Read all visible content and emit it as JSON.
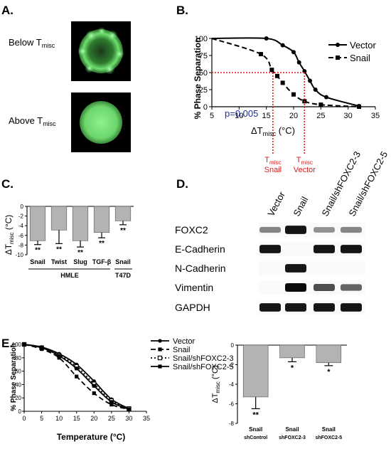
{
  "panels": {
    "A": "A.",
    "B": "B.",
    "C": "C.",
    "D": "D.",
    "E": "E."
  },
  "panel_a": {
    "below_label": "Below T",
    "above_label": "Above T",
    "subscript": "misc"
  },
  "panel_b": {
    "ylabel": "% Phase Separation",
    "xlabel_main": "ΔT",
    "xlabel_sub": "misc",
    "xlabel_unit": " (°C)",
    "pvalue": "p=0.005",
    "tm_label_snail_main": "T",
    "tm_label_snail_sub": "misc",
    "tm_label_snail_name": "Snail",
    "tm_label_vector_main": "T",
    "tm_label_vector_sub": "misc",
    "tm_label_vector_name": "Vector",
    "colors": {
      "red": "#d62020"
    }
  },
  "panel_c": {
    "ylabel_main": "ΔT",
    "ylabel_sub": "misc",
    "ylabel_unit": " (°C)",
    "group_hmle": "HMLE",
    "group_t47d": "T47D"
  },
  "panel_d": {
    "columns": [
      "Vector",
      "Snail",
      "Snail/shFOXC2-3",
      "Snail/shFOXC2-5"
    ],
    "rows": [
      {
        "name": "FOXC2",
        "bands": [
          0.45,
          0.95,
          0.4,
          0.45
        ]
      },
      {
        "name": "E-Cadherin",
        "bands": [
          0.95,
          0.0,
          0.95,
          0.95
        ]
      },
      {
        "name": "N-Cadherin",
        "bands": [
          0.0,
          0.95,
          0.0,
          0.0
        ]
      },
      {
        "name": "Vimentin",
        "bands": [
          0.0,
          1.0,
          0.7,
          0.6
        ]
      },
      {
        "name": "GAPDH",
        "bands": [
          0.95,
          0.95,
          0.95,
          0.95
        ]
      }
    ]
  },
  "panel_e": {
    "ylabel": "% Phase Separation",
    "xlabel": "Temperature (°C)",
    "bar_ylabel_main": "ΔT",
    "bar_ylabel_sub": "misc",
    "bar_ylabel_unit": " (°C)"
  },
  "chart_data": [
    {
      "id": "panel-b",
      "type": "line",
      "title": "",
      "xlabel": "ΔTmisc (°C)",
      "ylabel": "% Phase Separation",
      "xlim": [
        5,
        35
      ],
      "ylim": [
        0,
        100
      ],
      "xticks": [
        5,
        10,
        15,
        20,
        25,
        30,
        35
      ],
      "yticks": [
        0,
        25,
        50,
        75,
        100
      ],
      "legend": "top-right",
      "series": [
        {
          "name": "Vector",
          "style": "solid",
          "marker": "circle",
          "x": [
            5,
            15,
            18,
            20,
            21,
            22,
            23,
            24,
            26,
            32
          ],
          "y": [
            100,
            100,
            90,
            80,
            65,
            52,
            38,
            25,
            14,
            1
          ]
        },
        {
          "name": "Snail",
          "style": "dashed",
          "marker": "square",
          "x": [
            5,
            14,
            16,
            17,
            18,
            20,
            22,
            25,
            32
          ],
          "y": [
            100,
            77,
            54,
            45,
            35,
            18,
            8,
            3,
            0
          ]
        }
      ],
      "tmisc": {
        "Snail": 16.2,
        "Vector": 22.0
      },
      "annotation": "p=0.005"
    },
    {
      "id": "panel-c",
      "type": "bar",
      "title": "",
      "ylabel": "ΔTmisc (°C)",
      "ylim": [
        -10,
        0
      ],
      "yticks": [
        0,
        -2,
        -4,
        -6,
        -8,
        -10
      ],
      "categories": [
        "Snail",
        "Twist",
        "Slug",
        "TGF-β",
        "Snail"
      ],
      "groups": [
        "HMLE",
        "HMLE",
        "HMLE",
        "HMLE",
        "T47D"
      ],
      "values": [
        -7.1,
        -4.9,
        -7.1,
        -5.4,
        -3.0
      ],
      "errors": [
        0.8,
        2.8,
        1.3,
        1.1,
        0.8
      ],
      "significance": [
        "**",
        "**",
        "**",
        "**",
        "**"
      ]
    },
    {
      "id": "panel-e-curve",
      "type": "line",
      "title": "",
      "xlabel": "Temperature (°C)",
      "ylabel": "% Phase Separation",
      "xlim": [
        0,
        35
      ],
      "ylim": [
        0,
        100
      ],
      "xticks": [
        0,
        5,
        10,
        15,
        20,
        25,
        30,
        35
      ],
      "yticks": [
        0,
        20,
        40,
        60,
        80,
        100
      ],
      "legend": "top-right",
      "series": [
        {
          "name": "Vector",
          "style": "solid",
          "marker": "circle",
          "x": [
            0,
            5,
            10,
            15,
            20,
            25,
            30
          ],
          "y": [
            100,
            96,
            86,
            70,
            45,
            18,
            4
          ]
        },
        {
          "name": "Snail",
          "style": "dashed",
          "marker": "square",
          "x": [
            0,
            5,
            10,
            15,
            20,
            25,
            30
          ],
          "y": [
            100,
            93,
            80,
            52,
            27,
            10,
            3
          ]
        },
        {
          "name": "Snail/shFOXC2-3",
          "style": "dotted",
          "marker": "square-open",
          "x": [
            0,
            5,
            10,
            15,
            20,
            25,
            30
          ],
          "y": [
            100,
            95,
            84,
            67,
            41,
            16,
            4
          ]
        },
        {
          "name": "Snail/shFOXC2-5",
          "style": "solid",
          "marker": "square",
          "x": [
            0,
            5,
            10,
            15,
            20,
            25,
            30
          ],
          "y": [
            100,
            95,
            83,
            64,
            38,
            14,
            3
          ]
        }
      ]
    },
    {
      "id": "panel-e-bar",
      "type": "bar",
      "title": "",
      "ylabel": "ΔTmisc (°C)",
      "ylim": [
        -8,
        0
      ],
      "yticks": [
        0,
        -2,
        -4,
        -6,
        -8
      ],
      "categories": [
        {
          "top": "Snail",
          "bottom": "shControl"
        },
        {
          "top": "Snail",
          "bottom": "shFOXC2-3"
        },
        {
          "top": "Snail",
          "bottom": "shFOXC2-5"
        }
      ],
      "values": [
        -5.3,
        -1.3,
        -1.8
      ],
      "errors": [
        1.2,
        0.4,
        0.3
      ],
      "significance": [
        "**",
        "*",
        "*"
      ]
    }
  ]
}
